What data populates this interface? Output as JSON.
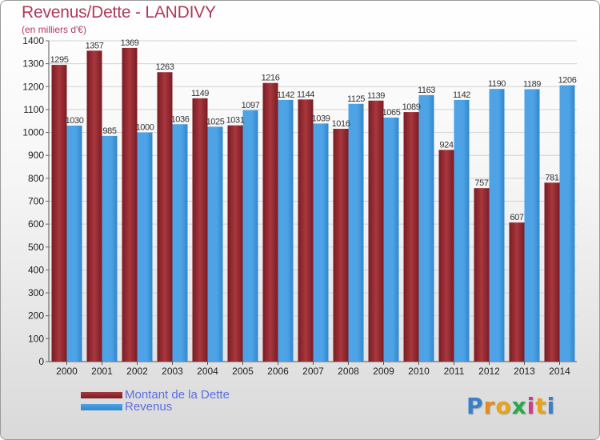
{
  "title": "Revenus/Dette - LANDIVY",
  "subtitle": "(en milliers d'€)",
  "logo": {
    "text": "Proxiti",
    "letter_colors": [
      "#3a7fc8",
      "#e58a1f",
      "#e8a317",
      "#2aa84a",
      "#d03a8a",
      "#e8a317",
      "#3a7fc8"
    ]
  },
  "colors": {
    "dette": "#7a1c24",
    "dette_light": "#a8373d",
    "revenus": "#4da3e6",
    "revenus_dark": "#2f86cc",
    "title": "#b03a5b",
    "legend_text": "#5b6ee1"
  },
  "chart_data": {
    "type": "bar",
    "title": "Revenus/Dette - LANDIVY",
    "subtitle": "(en milliers d'€)",
    "xlabel": "",
    "ylabel": "",
    "categories": [
      "2000",
      "2001",
      "2002",
      "2003",
      "2004",
      "2005",
      "2006",
      "2007",
      "2008",
      "2009",
      "2010",
      "2011",
      "2012",
      "2013",
      "2014"
    ],
    "series": [
      {
        "name": "Montant de la Dette",
        "values": [
          1295,
          1357,
          1369,
          1263,
          1149,
          1031,
          1216,
          1144,
          1016,
          1139,
          1089,
          924,
          757,
          607,
          781
        ]
      },
      {
        "name": "Revenus",
        "values": [
          1030,
          985,
          1000,
          1036,
          1025,
          1097,
          1142,
          1039,
          1125,
          1065,
          1163,
          1142,
          1190,
          1189,
          1206
        ]
      }
    ],
    "yticks": [
      0,
      100,
      200,
      300,
      400,
      500,
      600,
      700,
      800,
      900,
      1000,
      1100,
      1200,
      1300,
      1400
    ],
    "ylim": [
      0,
      1400
    ],
    "grid": true,
    "legend_position": "bottom-left"
  }
}
